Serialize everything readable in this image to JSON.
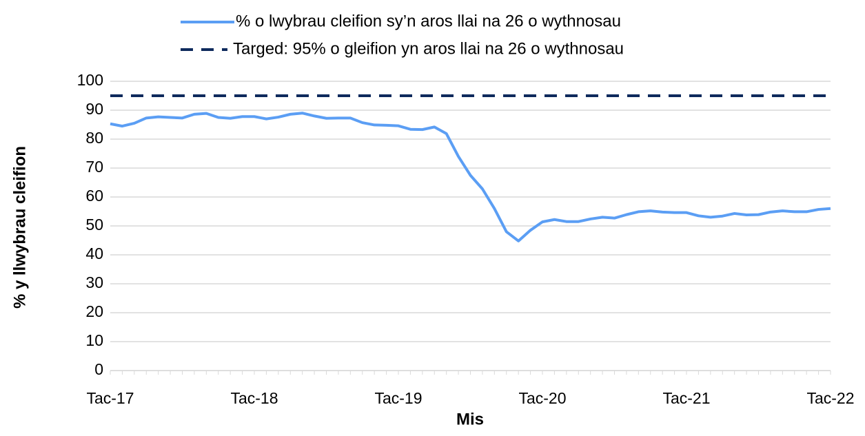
{
  "chart_data": {
    "type": "line",
    "categories": [
      "Tac-17",
      null,
      null,
      null,
      null,
      null,
      null,
      null,
      null,
      null,
      null,
      null,
      "Tac-18",
      null,
      null,
      null,
      null,
      null,
      null,
      null,
      null,
      null,
      null,
      null,
      "Tac-19",
      null,
      null,
      null,
      null,
      null,
      null,
      null,
      null,
      null,
      null,
      null,
      "Tac-20",
      null,
      null,
      null,
      null,
      null,
      null,
      null,
      null,
      null,
      null,
      null,
      "Tac-21",
      null,
      null,
      null,
      null,
      null,
      null,
      null,
      null,
      null,
      null,
      null,
      "Tac-22"
    ],
    "series": [
      {
        "name": "% o lwybrau cleifion sy’n aros llai na 26 o wythnosau",
        "color": "#5b9ef4",
        "dashed": false,
        "values": [
          85.3,
          84.5,
          85.5,
          87.3,
          87.7,
          87.5,
          87.3,
          88.6,
          88.9,
          87.5,
          87.2,
          87.8,
          87.8,
          87.0,
          87.6,
          88.6,
          89.0,
          88.0,
          87.2,
          87.3,
          87.3,
          85.7,
          84.9,
          84.8,
          84.6,
          83.4,
          83.3,
          84.2,
          81.9,
          74.0,
          67.5,
          62.8,
          56.0,
          48.0,
          44.8,
          48.5,
          51.4,
          52.2,
          51.5,
          51.5,
          52.4,
          53.0,
          52.7,
          53.9,
          54.9,
          55.2,
          54.8,
          54.6,
          54.6,
          53.5,
          53.0,
          53.4,
          54.3,
          53.8,
          53.9,
          54.8,
          55.2,
          54.9,
          54.9,
          55.7,
          56.0
        ]
      },
      {
        "name": "Targed: 95% o gleifion yn aros llai na 26 o wythnosau",
        "color": "#0e2a5c",
        "dashed": true,
        "values": [
          95,
          95,
          95,
          95,
          95,
          95,
          95,
          95,
          95,
          95,
          95,
          95,
          95,
          95,
          95,
          95,
          95,
          95,
          95,
          95,
          95,
          95,
          95,
          95,
          95,
          95,
          95,
          95,
          95,
          95,
          95,
          95,
          95,
          95,
          95,
          95,
          95,
          95,
          95,
          95,
          95,
          95,
          95,
          95,
          95,
          95,
          95,
          95,
          95,
          95,
          95,
          95,
          95,
          95,
          95,
          95,
          95,
          95,
          95,
          95,
          95
        ]
      }
    ],
    "xlabel": "Mis",
    "ylabel": "% y llwybrau cleifion",
    "ylim": [
      0,
      100
    ],
    "yticks": [
      0,
      10,
      20,
      30,
      40,
      50,
      60,
      70,
      80,
      90,
      100
    ],
    "grid": true,
    "legend": "top"
  }
}
